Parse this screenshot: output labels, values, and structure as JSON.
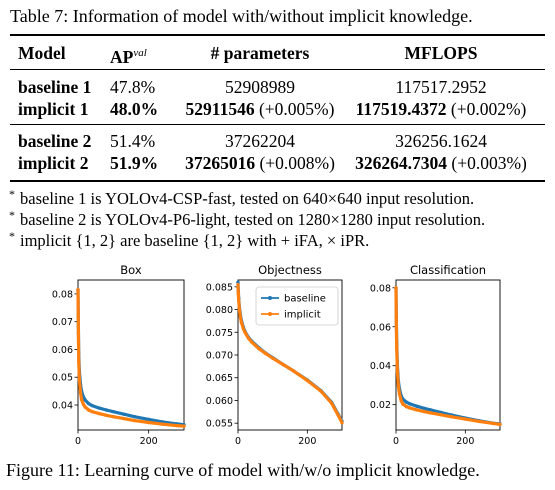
{
  "table": {
    "caption": "Table 7: Information of model with/without implicit knowledge.",
    "headers": {
      "model": "Model",
      "ap": "AP",
      "ap_superscript": "val",
      "params": "# parameters",
      "mflops": "MFLOPS"
    },
    "groups": [
      [
        {
          "model": "baseline 1",
          "ap": "47.8%",
          "params": "52908989",
          "params_delta": "",
          "mflops": "117517.2952",
          "mflops_delta": ""
        },
        {
          "model": "implicit 1",
          "ap": "48.0%",
          "params": "52911546",
          "params_delta": " (+0.005%)",
          "mflops": "117519.4372",
          "mflops_delta": " (+0.002%)"
        }
      ],
      [
        {
          "model": "baseline 2",
          "ap": "51.4%",
          "params": "37262204",
          "params_delta": "",
          "mflops": "326256.1624",
          "mflops_delta": ""
        },
        {
          "model": "implicit 2",
          "ap": "51.9%",
          "params": "37265016",
          "params_delta": " (+0.008%)",
          "mflops": "326264.7304",
          "mflops_delta": " (+0.003%)"
        }
      ]
    ],
    "notes": [
      "baseline 1 is YOLOv4-CSP-fast, tested on 640×640 input resolution.",
      "baseline 2 is YOLOv4-P6-light, tested on 1280×1280 input resolution.",
      "implicit {1, 2} are baseline {1, 2} with + iFA, × iPR."
    ]
  },
  "figure": {
    "caption": "Figure 11: Learning curve of model with/w/o implicit knowledge."
  },
  "colors": {
    "baseline": "#1f77b4",
    "implicit": "#ff7f0e"
  },
  "chart_data": [
    {
      "type": "line",
      "title": "Box",
      "xlabel": "",
      "ylabel": "",
      "xlim": [
        0,
        300
      ],
      "ylim": [
        0.031,
        0.085
      ],
      "xticks": [
        0,
        200
      ],
      "yticks": [
        0.04,
        0.05,
        0.06,
        0.07,
        0.08
      ],
      "ytick_labels": [
        "0.04",
        "0.05",
        "0.06",
        "0.07",
        "0.08"
      ],
      "x": [
        0,
        1,
        2,
        4,
        7,
        10,
        15,
        20,
        30,
        40,
        60,
        80,
        100,
        130,
        160,
        200,
        240,
        280,
        300
      ],
      "series": [
        {
          "name": "baseline",
          "values": [
            0.0815,
            0.068,
            0.059,
            0.052,
            0.0475,
            0.045,
            0.043,
            0.0418,
            0.0405,
            0.0398,
            0.0389,
            0.0382,
            0.0376,
            0.0367,
            0.0358,
            0.0348,
            0.0339,
            0.0332,
            0.0329
          ]
        },
        {
          "name": "implicit",
          "values": [
            0.0815,
            0.066,
            0.056,
            0.049,
            0.0445,
            0.042,
            0.0403,
            0.0393,
            0.0382,
            0.0376,
            0.0369,
            0.0363,
            0.0358,
            0.0351,
            0.0344,
            0.0337,
            0.0331,
            0.0326,
            0.0324
          ]
        }
      ]
    },
    {
      "type": "line",
      "title": "Objectness",
      "xlabel": "",
      "ylabel": "",
      "xlim": [
        0,
        300
      ],
      "ylim": [
        0.0535,
        0.0865
      ],
      "xticks": [
        0,
        200
      ],
      "yticks": [
        0.055,
        0.06,
        0.065,
        0.07,
        0.075,
        0.08,
        0.085
      ],
      "ytick_labels": [
        "0.055",
        "0.060",
        "0.065",
        "0.070",
        "0.075",
        "0.080",
        "0.085"
      ],
      "x": [
        0,
        1,
        2,
        4,
        7,
        10,
        15,
        20,
        30,
        40,
        60,
        80,
        100,
        130,
        160,
        200,
        240,
        270,
        290,
        300
      ],
      "series": [
        {
          "name": "baseline",
          "values": [
            0.086,
            0.084,
            0.0825,
            0.0805,
            0.0788,
            0.0775,
            0.0762,
            0.0752,
            0.0739,
            0.073,
            0.0716,
            0.0704,
            0.0694,
            0.0679,
            0.0665,
            0.0645,
            0.0621,
            0.0596,
            0.0568,
            0.0554
          ]
        },
        {
          "name": "implicit",
          "values": [
            0.0855,
            0.0835,
            0.082,
            0.08,
            0.0783,
            0.0771,
            0.0759,
            0.075,
            0.0737,
            0.0728,
            0.0714,
            0.0703,
            0.0693,
            0.0679,
            0.0665,
            0.0644,
            0.062,
            0.0594,
            0.0566,
            0.0551
          ]
        }
      ],
      "legend": "top-right"
    },
    {
      "type": "line",
      "title": "Classification",
      "xlabel": "",
      "ylabel": "",
      "xlim": [
        0,
        300
      ],
      "ylim": [
        0.007,
        0.084
      ],
      "xticks": [
        0,
        200
      ],
      "yticks": [
        0.02,
        0.04,
        0.06,
        0.08
      ],
      "ytick_labels": [
        "0.02",
        "0.04",
        "0.06",
        "0.08"
      ],
      "x": [
        0,
        1,
        2,
        4,
        7,
        10,
        15,
        20,
        30,
        40,
        60,
        80,
        100,
        130,
        160,
        200,
        240,
        280,
        300
      ],
      "series": [
        {
          "name": "baseline",
          "values": [
            0.08,
            0.065,
            0.052,
            0.04,
            0.032,
            0.028,
            0.0245,
            0.0228,
            0.0213,
            0.0204,
            0.0192,
            0.0182,
            0.0173,
            0.016,
            0.0147,
            0.0131,
            0.0117,
            0.0105,
            0.0101
          ]
        },
        {
          "name": "implicit",
          "values": [
            0.08,
            0.063,
            0.049,
            0.037,
            0.0295,
            0.0255,
            0.022,
            0.0203,
            0.019,
            0.0183,
            0.0173,
            0.0165,
            0.0158,
            0.0148,
            0.0138,
            0.0126,
            0.0114,
            0.0104,
            0.0099
          ]
        }
      ]
    }
  ]
}
